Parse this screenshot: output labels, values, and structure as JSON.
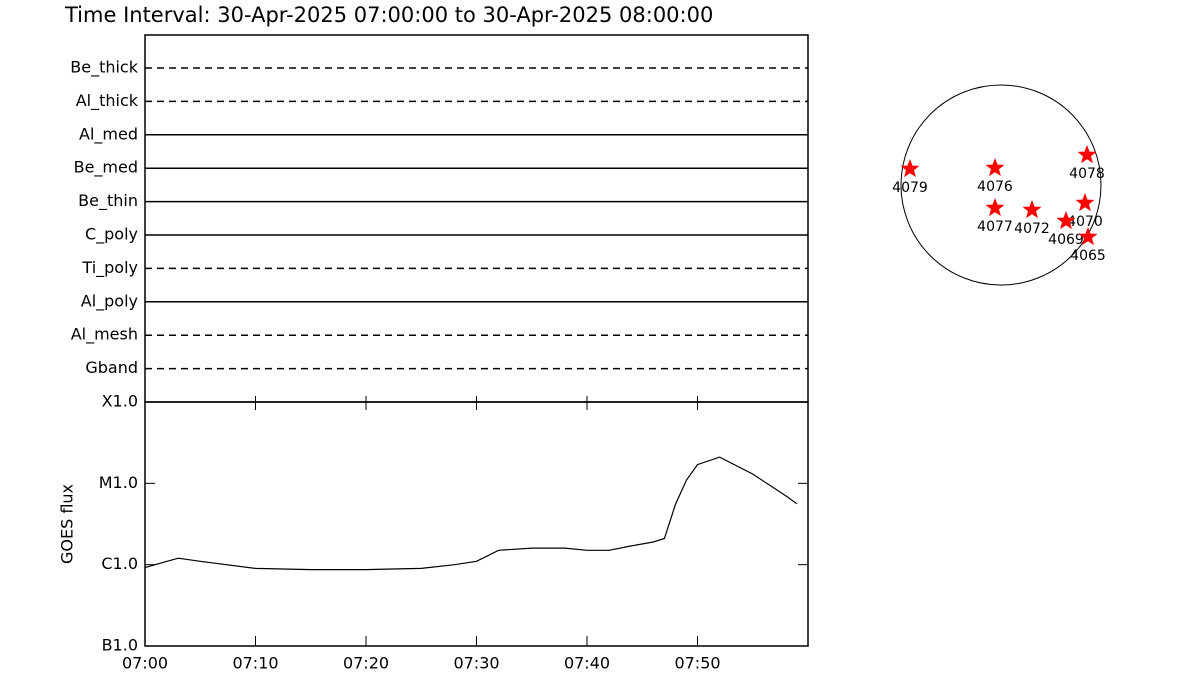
{
  "chart_data": [
    {
      "type": "timeline",
      "title": "Time Interval: 30-Apr-2025 07:00:00 to 30-Apr-2025 08:00:00",
      "categories": [
        "Be_thick",
        "Al_thick",
        "Al_med",
        "Be_med",
        "Be_thin",
        "C_poly",
        "Ti_poly",
        "Al_poly",
        "Al_mesh",
        "Gband"
      ],
      "line_styles": [
        "dashed",
        "dashed",
        "solid",
        "solid",
        "solid",
        "solid",
        "dashed",
        "solid",
        "dashed",
        "dashed"
      ],
      "color": "#000000"
    },
    {
      "type": "line",
      "ylabel": "GOES flux",
      "log_scale": true,
      "color": "#000000",
      "x": [
        "07:00",
        "07:02",
        "07:03",
        "07:05",
        "07:10",
        "07:15",
        "07:20",
        "07:25",
        "07:28",
        "07:30",
        "07:32",
        "07:35",
        "07:38",
        "07:40",
        "07:42",
        "07:44",
        "07:46",
        "07:47",
        "07:48",
        "07:49",
        "07:50",
        "07:52",
        "07:55",
        "07:58",
        "07:59"
      ],
      "values": [
        9.2e-07,
        1.1e-06,
        1.2e-06,
        1.1e-06,
        9e-07,
        8.7e-07,
        8.7e-07,
        9e-07,
        1e-06,
        1.1e-06,
        1.5e-06,
        1.6e-06,
        1.6e-06,
        1.5e-06,
        1.5e-06,
        1.7e-06,
        1.9e-06,
        2.1e-06,
        5.5e-06,
        1.1e-05,
        1.7e-05,
        2.1e-05,
        1.3e-05,
        7e-06,
        5.6e-06
      ],
      "xlim": [
        "07:00",
        "08:00"
      ],
      "xticks": [
        "07:00",
        "07:10",
        "07:20",
        "07:30",
        "07:40",
        "07:50"
      ],
      "ylim": [
        1e-07,
        0.0001
      ],
      "yticks": [
        {
          "value": 1e-07,
          "label": "B1.0"
        },
        {
          "value": 1e-06,
          "label": "C1.0"
        },
        {
          "value": 1e-05,
          "label": "M1.0"
        },
        {
          "value": 0.0001,
          "label": "X1.0"
        }
      ]
    },
    {
      "type": "scatter",
      "color": "#ff0000",
      "xlim": [
        -1,
        1
      ],
      "ylim": [
        -1,
        1
      ],
      "labels": [
        "4079",
        "4076",
        "4078",
        "4077",
        "4072",
        "4070",
        "4069",
        "4065"
      ],
      "x": [
        -0.91,
        -0.06,
        0.86,
        -0.06,
        0.31,
        0.84,
        0.65,
        0.87
      ],
      "values": [
        0.16,
        0.17,
        0.3,
        -0.23,
        -0.25,
        -0.18,
        -0.36,
        -0.52
      ]
    }
  ]
}
